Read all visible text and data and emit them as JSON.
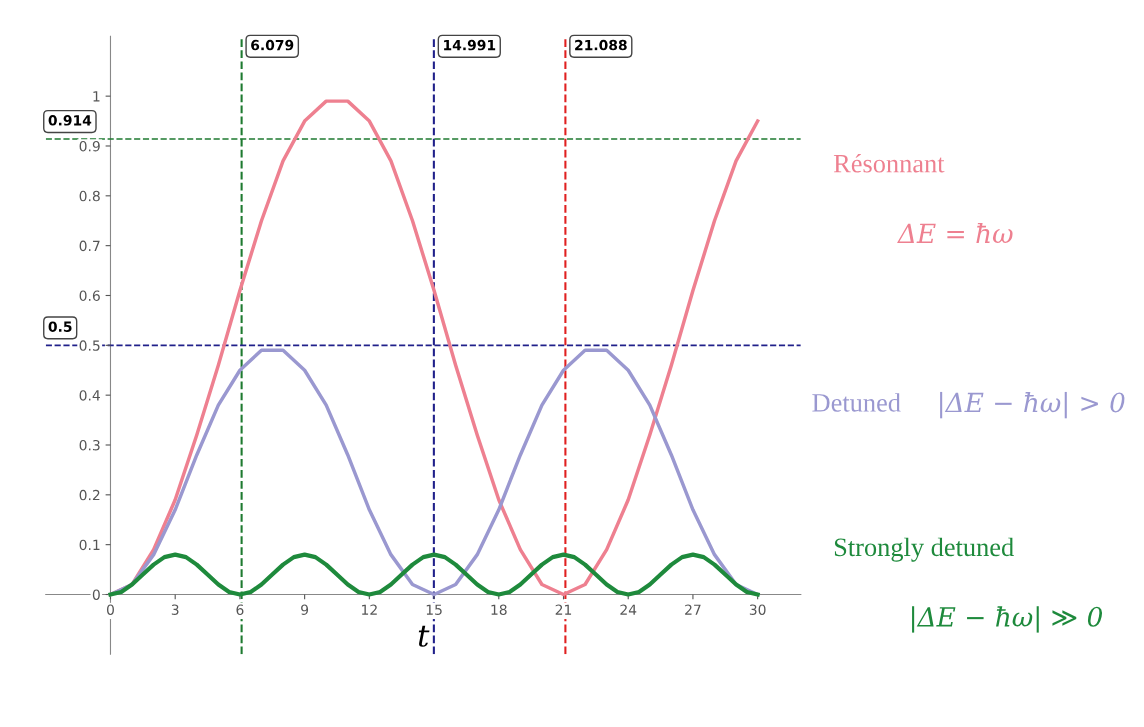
{
  "chart_data": {
    "type": "line",
    "xlabel": "t",
    "xlim": [
      -3,
      32
    ],
    "ylim": [
      -0.12,
      1.12
    ],
    "xticks": [
      0,
      3,
      6,
      9,
      12,
      15,
      18,
      21,
      24,
      27,
      30
    ],
    "yticks": [
      0,
      0.1,
      0.2,
      0.3,
      0.4,
      0.5,
      0.6,
      0.7,
      0.8,
      0.9,
      1
    ],
    "grid": false,
    "legend": false,
    "line_style": "solid",
    "marker": "none",
    "series": [
      {
        "name": "Résonnant",
        "color": "#ee8090",
        "x": [
          0,
          1,
          2,
          3,
          4,
          5,
          6,
          7,
          8,
          9,
          10,
          11,
          12,
          13,
          14,
          15,
          16,
          17,
          18,
          19,
          20,
          21,
          22,
          23,
          24,
          25,
          26,
          27,
          28,
          29,
          30
        ],
        "values": [
          0,
          0.02,
          0.09,
          0.19,
          0.32,
          0.46,
          0.61,
          0.75,
          0.87,
          0.95,
          0.99,
          0.99,
          0.95,
          0.87,
          0.75,
          0.61,
          0.46,
          0.32,
          0.19,
          0.09,
          0.02,
          0,
          0.02,
          0.09,
          0.19,
          0.32,
          0.46,
          0.61,
          0.75,
          0.87,
          0.95
        ]
      },
      {
        "name": "Detuned",
        "color": "#9a98d0",
        "x": [
          0,
          1,
          2,
          3,
          4,
          5,
          6,
          7,
          8,
          9,
          10,
          11,
          12,
          13,
          14,
          15,
          16,
          17,
          18,
          19,
          20,
          21,
          22,
          23,
          24,
          25,
          26,
          27,
          28,
          29,
          30
        ],
        "values": [
          0,
          0.02,
          0.08,
          0.17,
          0.28,
          0.38,
          0.45,
          0.49,
          0.49,
          0.45,
          0.38,
          0.28,
          0.17,
          0.08,
          0.02,
          0,
          0.02,
          0.08,
          0.17,
          0.28,
          0.38,
          0.45,
          0.49,
          0.49,
          0.45,
          0.38,
          0.28,
          0.17,
          0.08,
          0.02,
          0
        ]
      },
      {
        "name": "Strongly detuned",
        "color": "#1e8a3c",
        "x": [
          0,
          0.5,
          1,
          1.5,
          2,
          2.5,
          3,
          3.5,
          4,
          4.5,
          5,
          5.5,
          6,
          6.5,
          7,
          7.5,
          8,
          8.5,
          9,
          9.5,
          10,
          10.5,
          11,
          11.5,
          12,
          12.5,
          13,
          13.5,
          14,
          14.5,
          15,
          15.5,
          16,
          16.5,
          17,
          17.5,
          18,
          18.5,
          19,
          19.5,
          20,
          20.5,
          21,
          21.5,
          22,
          22.5,
          23,
          23.5,
          24,
          24.5,
          25,
          25.5,
          26,
          26.5,
          27,
          27.5,
          28,
          28.5,
          29,
          29.5,
          30
        ],
        "values": [
          0,
          0.005,
          0.02,
          0.04,
          0.06,
          0.075,
          0.08,
          0.075,
          0.06,
          0.04,
          0.02,
          0.005,
          0,
          0.005,
          0.02,
          0.04,
          0.06,
          0.075,
          0.08,
          0.075,
          0.06,
          0.04,
          0.02,
          0.005,
          0,
          0.005,
          0.02,
          0.04,
          0.06,
          0.075,
          0.08,
          0.075,
          0.06,
          0.04,
          0.02,
          0.005,
          0,
          0.005,
          0.02,
          0.04,
          0.06,
          0.075,
          0.08,
          0.075,
          0.06,
          0.04,
          0.02,
          0.005,
          0,
          0.005,
          0.02,
          0.04,
          0.06,
          0.075,
          0.08,
          0.075,
          0.06,
          0.04,
          0.02,
          0.005,
          0
        ]
      }
    ],
    "annotations": [
      "ΔE = ħω",
      "|ΔE − ħω| > 0",
      "|ΔE − ħω| ≫ 0"
    ],
    "ref_lines": [
      {
        "axis": "x",
        "value": 6.079,
        "label": "6.079",
        "color": "#1e7a30",
        "line_style": "dashed"
      },
      {
        "axis": "x",
        "value": 14.991,
        "label": "14.991",
        "color": "#20208a",
        "line_style": "dashed"
      },
      {
        "axis": "x",
        "value": 21.088,
        "label": "21.088",
        "color": "#e02020",
        "line_style": "dashed"
      },
      {
        "axis": "y",
        "value": 0.914,
        "label": "0.914",
        "color": "#1e7a30",
        "line_style": "dashed"
      },
      {
        "axis": "y",
        "value": 0.5,
        "label": "0.5",
        "color": "#20208a",
        "line_style": "dashed"
      }
    ]
  }
}
